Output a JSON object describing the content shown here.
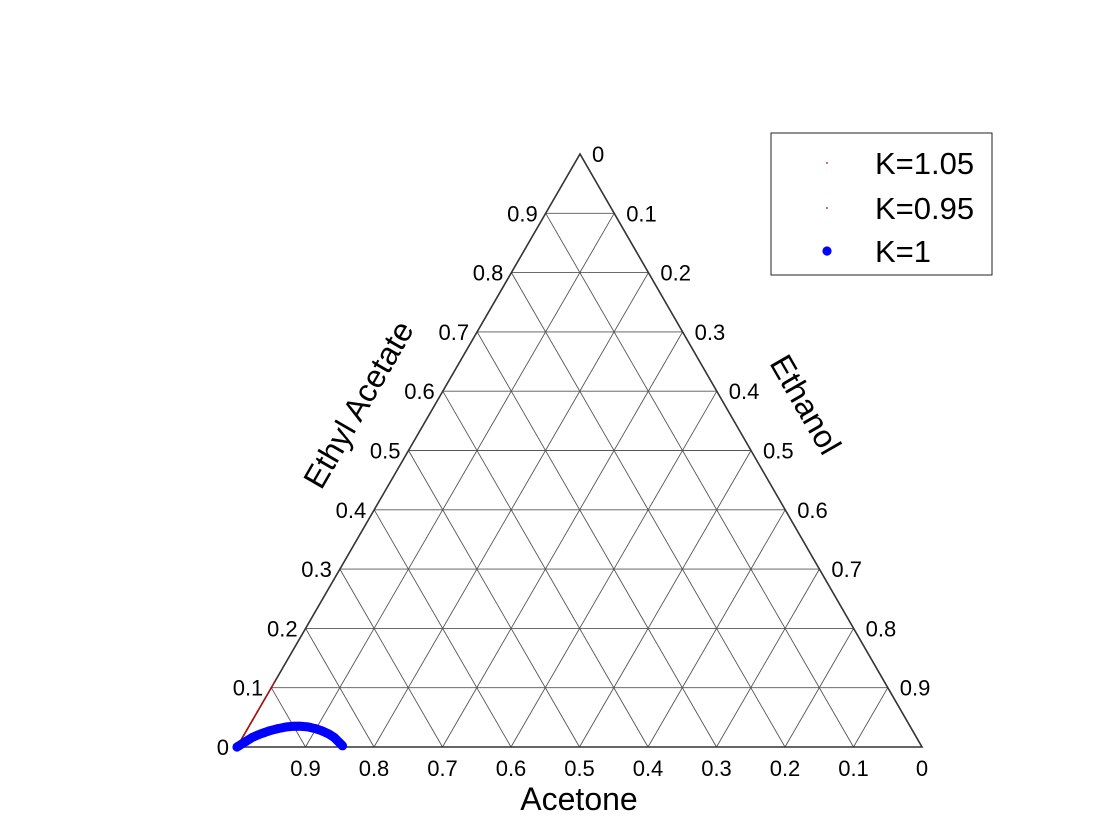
{
  "chart_data": {
    "type": "scatter",
    "subtype": "ternary",
    "axes": {
      "bottom": {
        "label": "Acetone",
        "ticks": [
          "0",
          "0.1",
          "0.2",
          "0.3",
          "0.4",
          "0.5",
          "0.6",
          "0.7",
          "0.8",
          "0.9"
        ]
      },
      "left": {
        "label": "Ethyl Acetate",
        "ticks": [
          "0",
          "0.1",
          "0.2",
          "0.3",
          "0.4",
          "0.5",
          "0.6",
          "0.7",
          "0.8",
          "0.9"
        ]
      },
      "right": {
        "label": "Ethanol",
        "ticks": [
          "0",
          "0.1",
          "0.2",
          "0.3",
          "0.4",
          "0.5",
          "0.6",
          "0.7",
          "0.8",
          "0.9"
        ]
      }
    },
    "grid": true,
    "legend": "top-right",
    "series": [
      {
        "name": "K=1.05",
        "color": "#cc0000",
        "marker": "dot-small",
        "points": [
          {
            "acetone": 1.0,
            "ethyl_acetate": 0.0,
            "ethanol": 0.0
          },
          {
            "acetone": 0.98,
            "ethyl_acetate": 0.02,
            "ethanol": 0.0
          },
          {
            "acetone": 0.96,
            "ethyl_acetate": 0.04,
            "ethanol": 0.0
          },
          {
            "acetone": 0.94,
            "ethyl_acetate": 0.06,
            "ethanol": 0.0
          },
          {
            "acetone": 0.92,
            "ethyl_acetate": 0.08,
            "ethanol": 0.0
          },
          {
            "acetone": 0.9,
            "ethyl_acetate": 0.1,
            "ethanol": 0.0
          },
          {
            "acetone": 0.89,
            "ethyl_acetate": 0.11,
            "ethanol": 0.0
          }
        ]
      },
      {
        "name": "K=0.95",
        "color": "#cc0000",
        "marker": "dot-small",
        "points": [
          {
            "acetone": 1.0,
            "ethyl_acetate": 0.0,
            "ethanol": 0.0
          },
          {
            "acetone": 0.985,
            "ethyl_acetate": 0.015,
            "ethanol": 0.0
          },
          {
            "acetone": 0.97,
            "ethyl_acetate": 0.03,
            "ethanol": 0.0
          },
          {
            "acetone": 0.955,
            "ethyl_acetate": 0.045,
            "ethanol": 0.0
          },
          {
            "acetone": 0.94,
            "ethyl_acetate": 0.06,
            "ethanol": 0.0
          },
          {
            "acetone": 0.925,
            "ethyl_acetate": 0.075,
            "ethanol": 0.0
          }
        ]
      },
      {
        "name": "K=1",
        "color": "#0000ff",
        "marker": "dot-large",
        "points": [
          {
            "acetone": 1.0,
            "ethyl_acetate": 0.0,
            "ethanol": 0.0
          },
          {
            "acetone": 0.985,
            "ethyl_acetate": 0.008,
            "ethanol": 0.007
          },
          {
            "acetone": 0.97,
            "ethyl_acetate": 0.016,
            "ethanol": 0.014
          },
          {
            "acetone": 0.955,
            "ethyl_acetate": 0.022,
            "ethanol": 0.023
          },
          {
            "acetone": 0.94,
            "ethyl_acetate": 0.027,
            "ethanol": 0.033
          },
          {
            "acetone": 0.925,
            "ethyl_acetate": 0.031,
            "ethanol": 0.044
          },
          {
            "acetone": 0.91,
            "ethyl_acetate": 0.034,
            "ethanol": 0.056
          },
          {
            "acetone": 0.9,
            "ethyl_acetate": 0.035,
            "ethanol": 0.065
          },
          {
            "acetone": 0.89,
            "ethyl_acetate": 0.035,
            "ethanol": 0.075
          },
          {
            "acetone": 0.88,
            "ethyl_acetate": 0.034,
            "ethanol": 0.086
          },
          {
            "acetone": 0.87,
            "ethyl_acetate": 0.031,
            "ethanol": 0.099
          },
          {
            "acetone": 0.862,
            "ethyl_acetate": 0.027,
            "ethanol": 0.111
          },
          {
            "acetone": 0.855,
            "ethyl_acetate": 0.022,
            "ethanol": 0.123
          },
          {
            "acetone": 0.85,
            "ethyl_acetate": 0.016,
            "ethanol": 0.134
          },
          {
            "acetone": 0.847,
            "ethyl_acetate": 0.008,
            "ethanol": 0.145
          },
          {
            "acetone": 0.845,
            "ethyl_acetate": 0.002,
            "ethanol": 0.153
          }
        ]
      }
    ]
  }
}
